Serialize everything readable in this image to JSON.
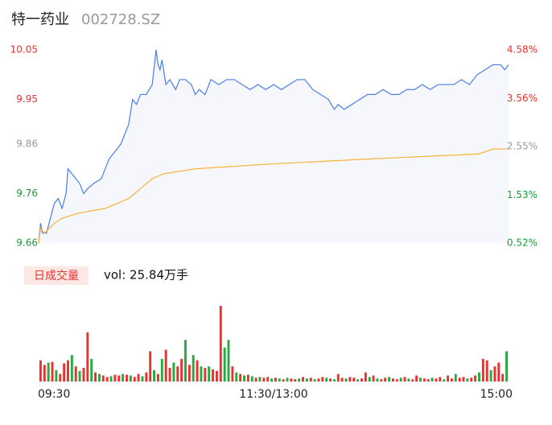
{
  "chart_data": [
    {
      "type": "line",
      "title": "特一药业",
      "subtitle": "002728.SZ",
      "xlim": [
        0,
        240
      ],
      "xticks": [
        {
          "value": 0,
          "label": "09:30"
        },
        {
          "value": 120,
          "label": "11:30/13:00"
        },
        {
          "value": 240,
          "label": "15:00"
        }
      ],
      "ylim": [
        9.66,
        10.05
      ],
      "yticks": [
        10.05,
        9.95,
        9.86,
        9.76,
        9.66
      ],
      "ytick_colors": [
        "#e8322e",
        "#e8322e",
        "#999999",
        "#1a9b3a",
        "#1a9b3a"
      ],
      "y2lim": [
        0.52,
        4.58
      ],
      "y2ticks": [
        {
          "value": 4.58,
          "label": "4.58%"
        },
        {
          "value": 3.56,
          "label": "3.56%"
        },
        {
          "value": 2.55,
          "label": "2.55%"
        },
        {
          "value": 1.53,
          "label": "1.53%"
        },
        {
          "value": 0.52,
          "label": "0.52%"
        }
      ],
      "area_color": "#f5f7fd",
      "series": [
        {
          "color": "#4a7ee6",
          "x": [
            0,
            1,
            2,
            4,
            8,
            10,
            12,
            14,
            15,
            17,
            19,
            21,
            23,
            25,
            28,
            32,
            34,
            36,
            38,
            40,
            42,
            44,
            46,
            48,
            50,
            52,
            55,
            58,
            60,
            61,
            62,
            63,
            65,
            67,
            70,
            72,
            75,
            78,
            80,
            82,
            85,
            88,
            92,
            96,
            100,
            104,
            108,
            112,
            116,
            120,
            124,
            128,
            132,
            136,
            140,
            144,
            148,
            151,
            153,
            156,
            160,
            164,
            168,
            172,
            176,
            180,
            184,
            188,
            192,
            196,
            200,
            204,
            208,
            212,
            216,
            220,
            224,
            228,
            232,
            236,
            238,
            240
          ],
          "values": [
            9.66,
            9.7,
            9.68,
            9.68,
            9.74,
            9.75,
            9.73,
            9.76,
            9.81,
            9.8,
            9.79,
            9.78,
            9.76,
            9.77,
            9.78,
            9.79,
            9.81,
            9.83,
            9.84,
            9.85,
            9.86,
            9.88,
            9.9,
            9.95,
            9.94,
            9.96,
            9.96,
            9.98,
            10.05,
            10.02,
            10.01,
            10.03,
            9.98,
            9.99,
            9.97,
            9.99,
            9.99,
            9.98,
            9.96,
            9.97,
            9.96,
            9.99,
            9.98,
            9.99,
            9.99,
            9.98,
            9.97,
            9.98,
            9.97,
            9.98,
            9.97,
            9.98,
            9.99,
            9.99,
            9.97,
            9.96,
            9.95,
            9.93,
            9.94,
            9.93,
            9.94,
            9.95,
            9.96,
            9.96,
            9.97,
            9.96,
            9.96,
            9.97,
            9.97,
            9.98,
            9.97,
            9.98,
            9.98,
            9.98,
            9.99,
            9.98,
            10.0,
            10.01,
            10.02,
            10.02,
            10.01,
            10.02
          ]
        },
        {
          "color": "#f5b335",
          "x": [
            0,
            1,
            3,
            8,
            12,
            20,
            34,
            40,
            46,
            52,
            58,
            64,
            80,
            120,
            170,
            225,
            232,
            240
          ],
          "values": [
            9.66,
            9.69,
            9.68,
            9.7,
            9.71,
            9.72,
            9.73,
            9.74,
            9.75,
            9.77,
            9.79,
            9.8,
            9.81,
            9.82,
            9.83,
            9.84,
            9.85,
            9.85
          ]
        }
      ]
    },
    {
      "type": "bar",
      "title": "日成交量",
      "subtitle": "vol: 25.84万手",
      "values": [
        28,
        22,
        25,
        26,
        15,
        10,
        24,
        28,
        35,
        20,
        14,
        18,
        65,
        30,
        12,
        10,
        8,
        6,
        7,
        9,
        8,
        10,
        9,
        8,
        6,
        10,
        7,
        12,
        40,
        15,
        10,
        30,
        42,
        18,
        25,
        20,
        30,
        55,
        22,
        35,
        28,
        20,
        18,
        20,
        16,
        14,
        100,
        45,
        55,
        20,
        12,
        10,
        8,
        9,
        7,
        5,
        6,
        5,
        6,
        4,
        5,
        4,
        3,
        5,
        4,
        3,
        4,
        6,
        4,
        5,
        3,
        4,
        6,
        5,
        4,
        3,
        10,
        5,
        4,
        6,
        5,
        3,
        4,
        12,
        6,
        8,
        4,
        3,
        5,
        6,
        4,
        3,
        5,
        6,
        4,
        3,
        8,
        5,
        4,
        3,
        5,
        4,
        6,
        3,
        8,
        4,
        10,
        5,
        6,
        4,
        5,
        8,
        12,
        30,
        28,
        15,
        20,
        25,
        10,
        40
      ],
      "colors": [
        "#e8322e",
        "#e8322e",
        "#2aa844",
        "#e8322e",
        "#2aa844",
        "#e8322e",
        "#e8322e",
        "#e8322e",
        "#2aa844",
        "#e8322e",
        "#2aa844",
        "#e8322e",
        "#e8322e",
        "#2aa844",
        "#e8322e",
        "#2aa844",
        "#e8322e",
        "#e8322e",
        "#2aa844",
        "#e8322e",
        "#e8322e",
        "#2aa844",
        "#e8322e",
        "#2aa844",
        "#e8322e",
        "#e8322e",
        "#2aa844",
        "#e8322e",
        "#e8322e",
        "#2aa844",
        "#e8322e",
        "#2aa844",
        "#e8322e",
        "#e8322e",
        "#2aa844",
        "#e8322e",
        "#e8322e",
        "#2aa844",
        "#e8322e",
        "#2aa844",
        "#e8322e",
        "#2aa844",
        "#e8322e",
        "#2aa844",
        "#e8322e",
        "#e8322e",
        "#e8322e",
        "#2aa844",
        "#2aa844",
        "#e8322e",
        "#2aa844",
        "#e8322e",
        "#2aa844",
        "#e8322e",
        "#2aa844",
        "#e8322e",
        "#2aa844",
        "#e8322e",
        "#e8322e",
        "#2aa844",
        "#e8322e",
        "#2aa844",
        "#e8322e",
        "#2aa844",
        "#e8322e",
        "#e8322e",
        "#2aa844",
        "#e8322e",
        "#2aa844",
        "#e8322e",
        "#2aa844",
        "#e8322e",
        "#e8322e",
        "#2aa844",
        "#e8322e",
        "#2aa844",
        "#e8322e",
        "#e8322e",
        "#2aa844",
        "#e8322e",
        "#e8322e",
        "#2aa844",
        "#e8322e",
        "#e8322e",
        "#2aa844",
        "#e8322e",
        "#2aa844",
        "#e8322e",
        "#e8322e",
        "#2aa844",
        "#e8322e",
        "#e8322e",
        "#2aa844",
        "#e8322e",
        "#2aa844",
        "#e8322e",
        "#e8322e",
        "#2aa844",
        "#e8322e",
        "#e8322e",
        "#2aa844",
        "#e8322e",
        "#e8322e",
        "#2aa844",
        "#e8322e",
        "#e8322e",
        "#2aa844",
        "#e8322e",
        "#e8322e",
        "#2aa844",
        "#e8322e",
        "#e8322e",
        "#2aa844",
        "#e8322e",
        "#e8322e",
        "#2aa844",
        "#e8322e",
        "#e8322e",
        "#e8322e",
        "#2aa844"
      ]
    }
  ]
}
